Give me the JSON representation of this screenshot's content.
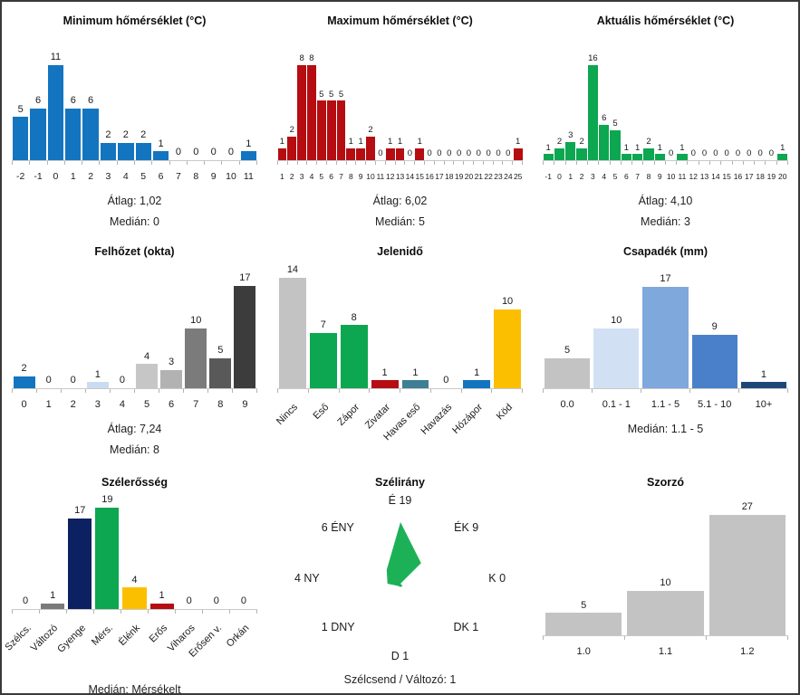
{
  "chart_data": [
    {
      "id": "min_temp",
      "type": "bar",
      "title": "Minimum hőmérséklet (°C)",
      "categories": [
        "-2",
        "-1",
        "0",
        "1",
        "2",
        "3",
        "4",
        "5",
        "6",
        "7",
        "8",
        "9",
        "10",
        "11"
      ],
      "values": [
        5,
        6,
        11,
        6,
        6,
        2,
        2,
        2,
        1,
        0,
        0,
        0,
        0,
        1
      ],
      "bar_color": "#1375bf",
      "stats": [
        "Átlag: 1,02",
        "Medián: 0"
      ]
    },
    {
      "id": "max_temp",
      "type": "bar",
      "title": "Maximum hőmérséklet (°C)",
      "categories": [
        "1",
        "2",
        "3",
        "4",
        "5",
        "6",
        "7",
        "8",
        "9",
        "10",
        "11",
        "12",
        "13",
        "14",
        "15",
        "16",
        "17",
        "18",
        "19",
        "20",
        "21",
        "22",
        "23",
        "24",
        "25"
      ],
      "values": [
        1,
        2,
        8,
        8,
        5,
        5,
        5,
        1,
        1,
        2,
        0,
        1,
        1,
        0,
        1,
        0,
        0,
        0,
        0,
        0,
        0,
        0,
        0,
        0,
        1
      ],
      "bar_color": "#b50d12",
      "stats": [
        "Átlag: 6,02",
        "Medián: 5"
      ]
    },
    {
      "id": "curr_temp",
      "type": "bar",
      "title": "Aktuális hőmérséklet (°C)",
      "categories": [
        "-1",
        "0",
        "1",
        "2",
        "3",
        "4",
        "5",
        "6",
        "7",
        "8",
        "9",
        "10",
        "11",
        "12",
        "13",
        "14",
        "15",
        "16",
        "17",
        "18",
        "19",
        "20"
      ],
      "values": [
        1,
        2,
        3,
        2,
        16,
        6,
        5,
        1,
        1,
        2,
        1,
        0,
        1,
        0,
        0,
        0,
        0,
        0,
        0,
        0,
        0,
        1
      ],
      "bar_color": "#0ca750",
      "stats": [
        "Átlag: 4,10",
        "Medián: 3"
      ]
    },
    {
      "id": "cloud_cover",
      "type": "bar",
      "title": "Felhőzet (okta)",
      "categories": [
        "0",
        "1",
        "2",
        "3",
        "4",
        "5",
        "6",
        "7",
        "8",
        "9"
      ],
      "values": [
        2,
        0,
        0,
        1,
        0,
        4,
        3,
        10,
        5,
        17
      ],
      "colors": [
        "#1375bf",
        null,
        null,
        "#c9dcf2",
        null,
        "#c6c6c6",
        "#b2b2b2",
        "#7b7b7b",
        "#595959",
        "#3c3c3c"
      ],
      "stats": [
        "Átlag: 7,24",
        "Medián: 8"
      ]
    },
    {
      "id": "present_weather",
      "type": "bar",
      "title": "Jelenidő",
      "categories": [
        "Nincs",
        "Eső",
        "Zápor",
        "Zivatar",
        "Havas eső",
        "Havazás",
        "Hózápor",
        "Köd"
      ],
      "values": [
        14,
        7,
        8,
        1,
        1,
        0,
        1,
        10
      ],
      "colors": [
        "#c3c3c3",
        "#0ca750",
        "#0ca750",
        "#b50d12",
        "#3e7f96",
        null,
        "#1375bf",
        "#fcbf00"
      ],
      "stats": []
    },
    {
      "id": "precipitation",
      "type": "bar",
      "title": "Csapadék (mm)",
      "categories": [
        "0.0",
        "0.1 - 1",
        "1.1 - 5",
        "5.1 - 10",
        "10+"
      ],
      "values": [
        5,
        10,
        17,
        9,
        1
      ],
      "colors": [
        "#c3c3c3",
        "#d2e0f4",
        "#7fa8dc",
        "#4a80ca",
        "#1c4878"
      ],
      "stats": [
        "Medián: 1.1 - 5"
      ]
    },
    {
      "id": "wind_strength",
      "type": "bar",
      "title": "Szélerősség",
      "categories": [
        "Szélcs.",
        "Változó",
        "Gyenge",
        "Mérs.",
        "Élénk",
        "Erős",
        "Viharos",
        "Erősen v.",
        "Orkán"
      ],
      "values": [
        0,
        1,
        17,
        19,
        4,
        1,
        0,
        0,
        0
      ],
      "colors": [
        null,
        "#7a7a7a",
        "#0b2161",
        "#0ca750",
        "#fcbf00",
        "#b50d12",
        null,
        null,
        null
      ],
      "stats": [
        "Medián: Mérsékelt"
      ]
    },
    {
      "id": "wind_direction",
      "type": "radar",
      "title": "Szélirány",
      "directions": [
        {
          "label": "É",
          "value": 19,
          "text": "É 19"
        },
        {
          "label": "ÉK",
          "value": 9,
          "text": "ÉK 9"
        },
        {
          "label": "K",
          "value": 0,
          "text": "K 0"
        },
        {
          "label": "DK",
          "value": 1,
          "text": "DK 1"
        },
        {
          "label": "D",
          "value": 1,
          "text": "D 1"
        },
        {
          "label": "DNY",
          "value": 1,
          "text": "1 DNY"
        },
        {
          "label": "NY",
          "value": 4,
          "text": "4 NY"
        },
        {
          "label": "ÉNY",
          "value": 6,
          "text": "6 ÉNY"
        }
      ],
      "arrow_color": "#1db157",
      "footer": "Szélcsend / Változó: 1"
    },
    {
      "id": "multiplier",
      "type": "bar",
      "title": "Szorzó",
      "categories": [
        "1.0",
        "1.1",
        "1.2"
      ],
      "values": [
        5,
        10,
        27
      ],
      "bar_color": "#c3c3c3",
      "stats": []
    }
  ]
}
